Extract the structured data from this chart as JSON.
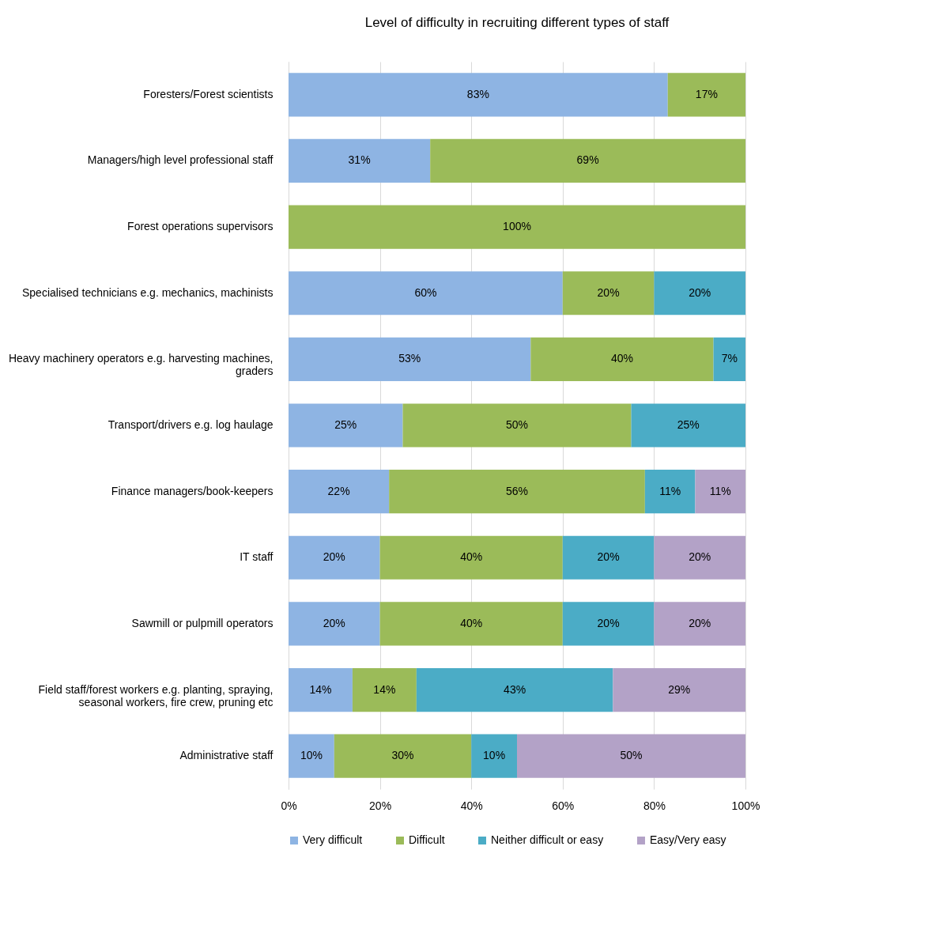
{
  "chart_data": {
    "type": "bar",
    "orientation": "horizontal",
    "stacked": true,
    "title": "Level of difficulty in recruiting different types of staff",
    "categories": [
      "Foresters/Forest scientists",
      "Managers/high level professional staff",
      "Forest operations supervisors",
      "Specialised technicians e.g. mechanics, machinists",
      "Heavy machinery operators e.g. harvesting machines, graders",
      "Transport/drivers e.g. log haulage",
      "Finance managers/book-keepers",
      "IT staff",
      "Sawmill or pulpmill operators",
      "Field staff/forest workers e.g. planting, spraying, seasonal workers, fire crew, pruning etc",
      "Administrative staff"
    ],
    "series": [
      {
        "name": "Very difficult",
        "color": "#8eb4e3",
        "values": [
          83,
          31,
          null,
          60,
          53,
          25,
          22,
          20,
          20,
          14,
          10
        ],
        "value_labels": [
          "83%",
          "31%",
          null,
          "60%",
          "53%",
          "25%",
          "22%",
          "20%",
          "20%",
          "14%",
          "10%"
        ]
      },
      {
        "name": "Difficult",
        "color": "#9bbb59",
        "values": [
          17,
          69,
          100,
          20,
          40,
          50,
          56,
          40,
          40,
          14,
          30
        ],
        "value_labels": [
          "17%",
          "69%",
          "100%",
          "20%",
          "40%",
          "50%",
          "56%",
          "40%",
          "40%",
          "14%",
          "30%"
        ]
      },
      {
        "name": "Neither difficult or easy",
        "color": "#4bacc6",
        "values": [
          null,
          null,
          null,
          20,
          7,
          25,
          11,
          20,
          20,
          43,
          10
        ],
        "value_labels": [
          null,
          null,
          null,
          "20%",
          "7%",
          "25%",
          "11%",
          "20%",
          "20%",
          "43%",
          "10%"
        ]
      },
      {
        "name": "Easy/Very easy",
        "color": "#b3a2c7",
        "values": [
          null,
          null,
          null,
          null,
          null,
          null,
          11,
          20,
          20,
          29,
          50
        ],
        "value_labels": [
          null,
          null,
          null,
          null,
          null,
          null,
          "11%",
          "20%",
          "20%",
          "29%",
          "50%"
        ]
      }
    ],
    "xlim": [
      0,
      100
    ],
    "xticks": [
      {
        "value": 0,
        "label": "0%"
      },
      {
        "value": 20,
        "label": "20%"
      },
      {
        "value": 40,
        "label": "40%"
      },
      {
        "value": 60,
        "label": "60%"
      },
      {
        "value": 80,
        "label": "80%"
      },
      {
        "value": 100,
        "label": "100%"
      }
    ],
    "grid": "x",
    "legend": "bottom"
  }
}
